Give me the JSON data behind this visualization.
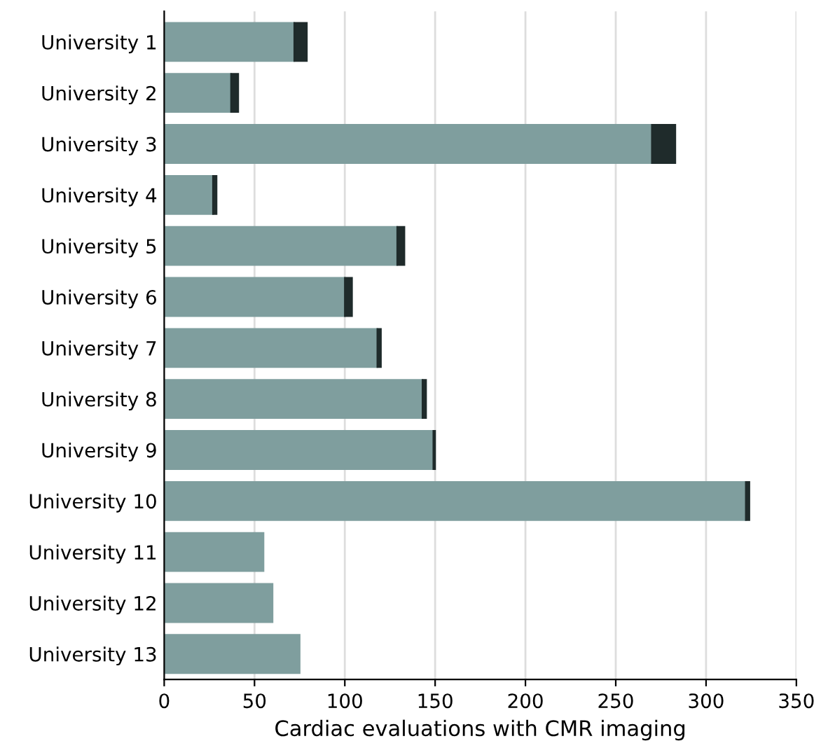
{
  "chart_data": {
    "type": "bar",
    "orientation": "horizontal",
    "stacked": true,
    "categories": [
      "University 1",
      "University 2",
      "University 3",
      "University 4",
      "University 5",
      "University 6",
      "University 7",
      "University 8",
      "University 9",
      "University 10",
      "University 11",
      "University 12",
      "University 13"
    ],
    "series": [
      {
        "color": "#7f9e9e",
        "values": [
          72,
          37,
          270,
          27,
          129,
          100,
          118,
          143,
          149,
          322,
          55,
          60,
          75
        ]
      },
      {
        "color": "#1f2b2b",
        "values": [
          7,
          4,
          13,
          2,
          4,
          4,
          2,
          2,
          1,
          2,
          null,
          null,
          null
        ]
      }
    ],
    "xlabel": "Cardiac evaluations with CMR imaging",
    "xlim": [
      0,
      350
    ],
    "xticks": [
      0,
      50,
      100,
      150,
      200,
      250,
      300,
      350
    ],
    "grid": "x",
    "legend": false
  }
}
